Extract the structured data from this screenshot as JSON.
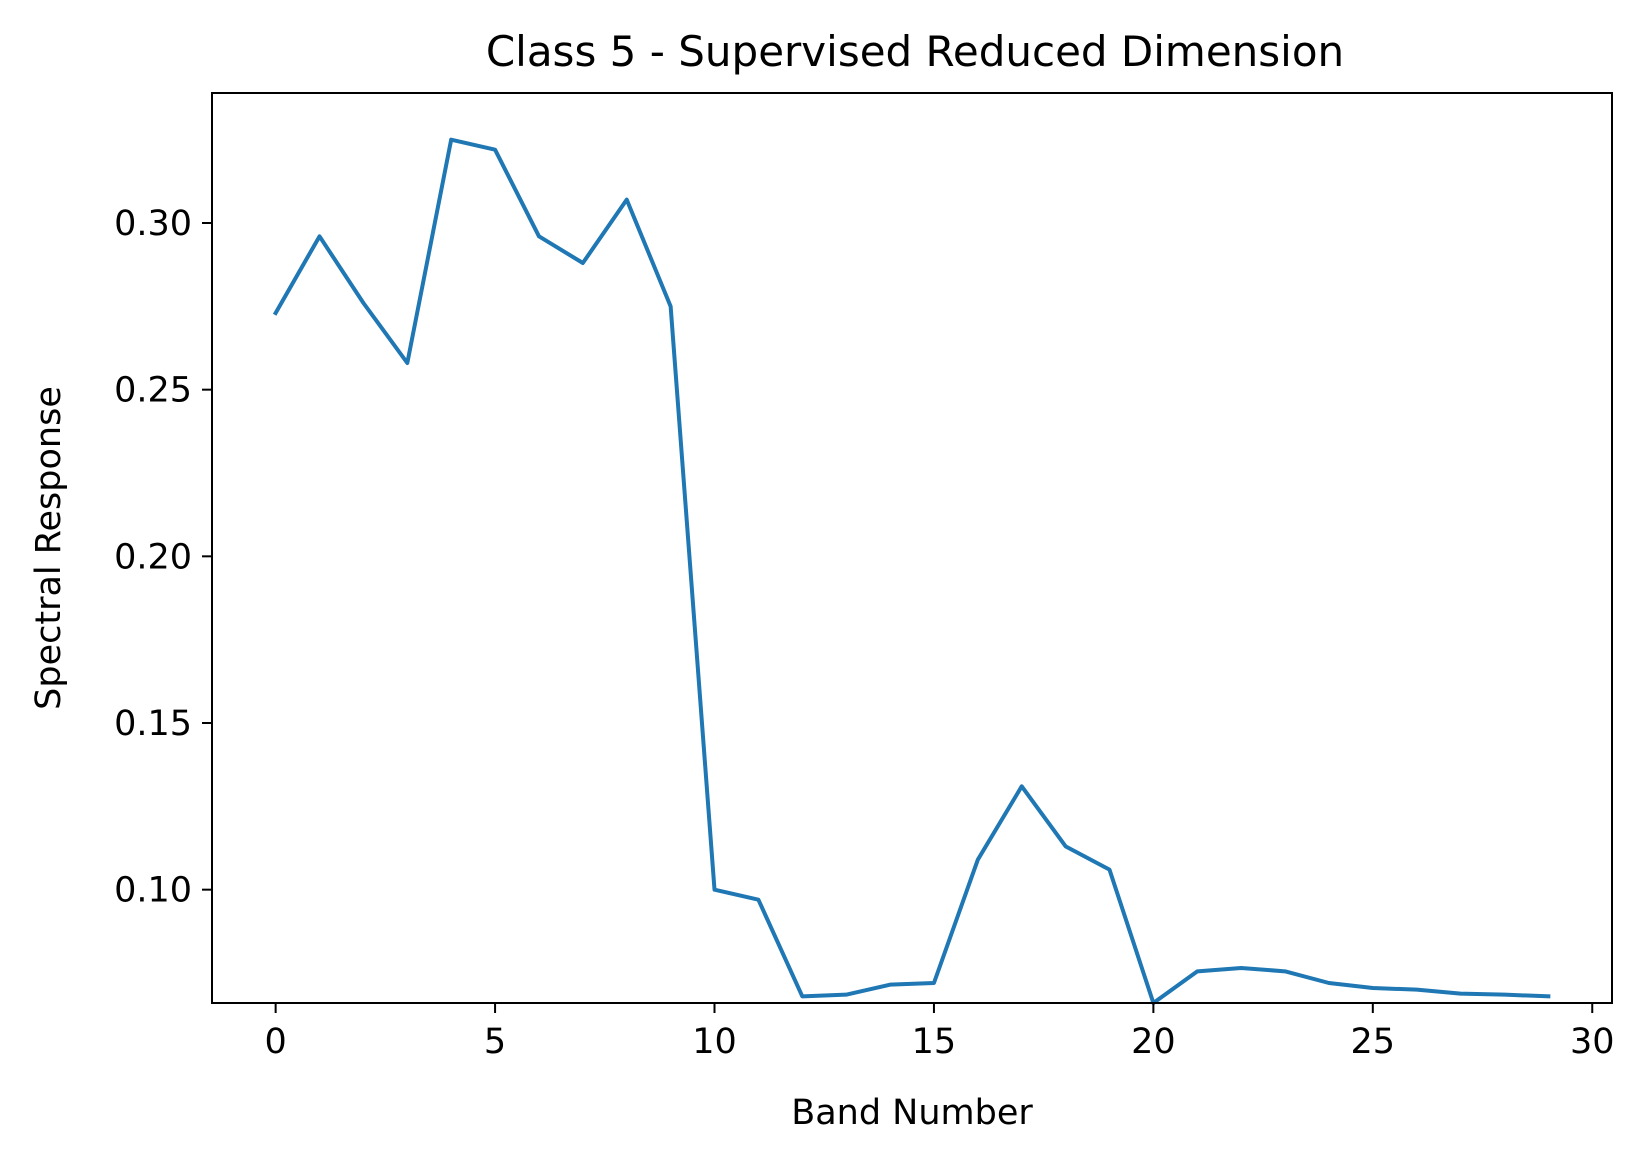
{
  "chart_data": {
    "type": "line",
    "title": "Class 5 - Supervised Reduced Dimension",
    "xlabel": "Band Number",
    "ylabel": "Spectral Response",
    "xlim": [
      -1.45,
      30.45
    ],
    "ylim": [
      0.066,
      0.339
    ],
    "x_ticks": [
      0,
      5,
      10,
      15,
      20,
      25,
      30
    ],
    "y_ticks": [
      0.1,
      0.15,
      0.2,
      0.25,
      0.3
    ],
    "x_tick_labels": [
      "0",
      "5",
      "10",
      "15",
      "20",
      "25",
      "30"
    ],
    "y_tick_labels": [
      "0.10",
      "0.15",
      "0.20",
      "0.25",
      "0.30"
    ],
    "grid": false,
    "series": [
      {
        "color": "#1f77b4",
        "x": [
          0,
          1,
          2,
          3,
          4,
          5,
          6,
          7,
          8,
          9,
          10,
          11,
          12,
          13,
          14,
          15,
          16,
          17,
          18,
          19,
          20,
          21,
          22,
          23,
          24,
          25,
          26,
          27,
          28,
          29
        ],
        "values": [
          0.273,
          0.296,
          0.276,
          0.258,
          0.325,
          0.322,
          0.296,
          0.288,
          0.307,
          0.275,
          0.1,
          0.097,
          0.068,
          0.0685,
          0.0715,
          0.072,
          0.109,
          0.131,
          0.113,
          0.106,
          0.066,
          0.0755,
          0.0765,
          0.0755,
          0.072,
          0.0705,
          0.07,
          0.0688,
          0.0685,
          0.068
        ]
      }
    ]
  }
}
